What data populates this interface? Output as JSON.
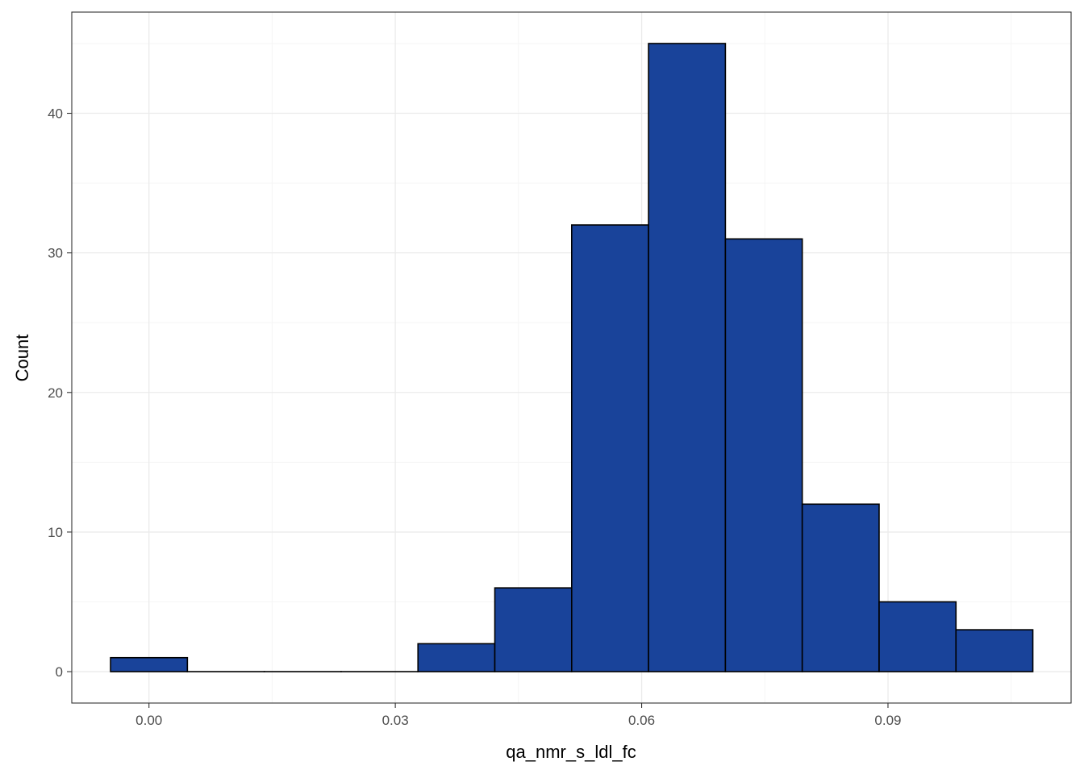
{
  "chart_data": {
    "type": "bar",
    "subtype": "histogram",
    "title": "",
    "xlabel": "qa_nmr_s_ldl_fc",
    "ylabel": "Count",
    "xlim": [
      -0.0094,
      0.1123
    ],
    "ylim": [
      -2.25,
      47.25
    ],
    "x_ticks": [
      {
        "value": 0.0,
        "label": "0.00"
      },
      {
        "value": 0.03,
        "label": "0.03"
      },
      {
        "value": 0.06,
        "label": "0.06"
      },
      {
        "value": 0.09,
        "label": "0.09"
      }
    ],
    "y_ticks": [
      {
        "value": 0,
        "label": "0"
      },
      {
        "value": 10,
        "label": "10"
      },
      {
        "value": 20,
        "label": "20"
      },
      {
        "value": 30,
        "label": "30"
      },
      {
        "value": 40,
        "label": "40"
      }
    ],
    "grid": true,
    "bin_width": 0.00936,
    "bins": [
      {
        "x0": -0.00468,
        "x1": 0.00468,
        "count": 1
      },
      {
        "x0": 0.00468,
        "x1": 0.01404,
        "count": 0
      },
      {
        "x0": 0.01404,
        "x1": 0.0234,
        "count": 0
      },
      {
        "x0": 0.0234,
        "x1": 0.03276,
        "count": 0
      },
      {
        "x0": 0.03276,
        "x1": 0.04212,
        "count": 2
      },
      {
        "x0": 0.04212,
        "x1": 0.05148,
        "count": 6
      },
      {
        "x0": 0.05148,
        "x1": 0.06084,
        "count": 32
      },
      {
        "x0": 0.06084,
        "x1": 0.0702,
        "count": 45
      },
      {
        "x0": 0.0702,
        "x1": 0.07956,
        "count": 31
      },
      {
        "x0": 0.07956,
        "x1": 0.08892,
        "count": 12
      },
      {
        "x0": 0.08892,
        "x1": 0.09828,
        "count": 5
      },
      {
        "x0": 0.09828,
        "x1": 0.10764,
        "count": 3
      }
    ],
    "colors": {
      "bar_fill": "#19439a",
      "bar_stroke": "#000000",
      "grid_major": "#ebebeb",
      "grid_minor": "#f5f5f5",
      "panel_border": "#333333",
      "tick_text": "#4d4d4d"
    }
  }
}
